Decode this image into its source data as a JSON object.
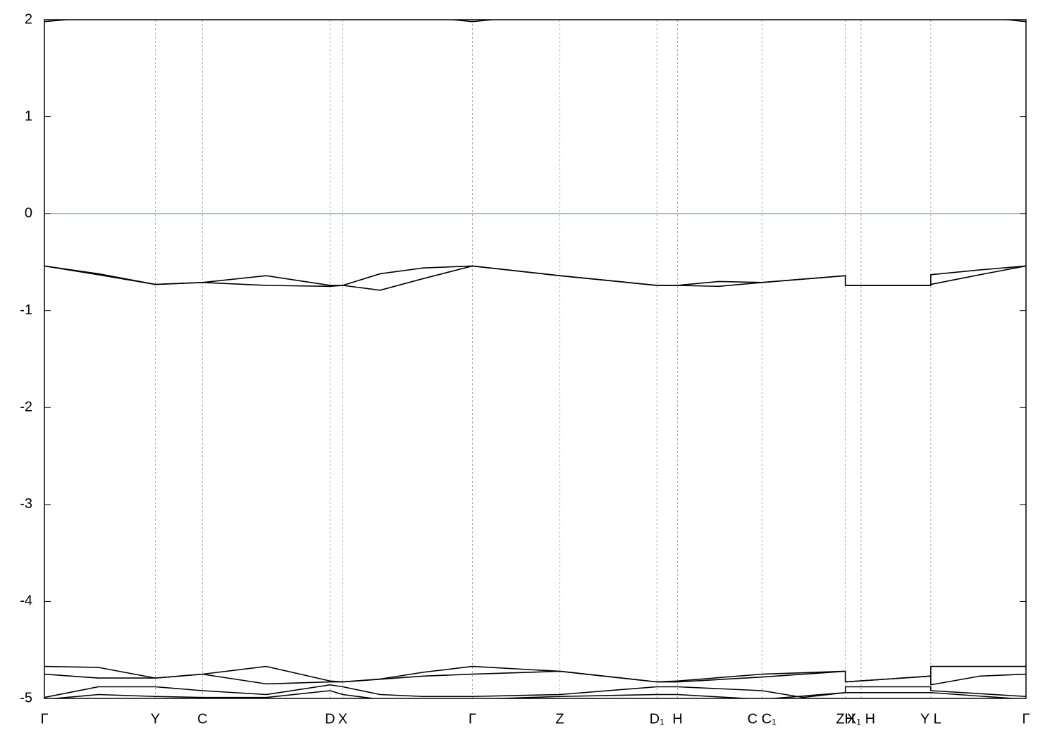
{
  "chart_data": {
    "type": "line",
    "xlim": [
      0,
      1
    ],
    "ylim": [
      -5,
      2
    ],
    "yticks": [
      2,
      1,
      0,
      -1,
      -2,
      -3,
      -4,
      -5
    ],
    "xticks": [
      {
        "value": 0,
        "label": "Γ"
      },
      {
        "value": 0.113,
        "label": "Y"
      },
      {
        "value": 0.161,
        "label": "C"
      },
      {
        "value": 0.291,
        "label": "D"
      },
      {
        "value": 0.304,
        "label": "X"
      },
      {
        "value": 0.436,
        "label": "Γ"
      },
      {
        "value": 0.525,
        "label": "Z"
      },
      {
        "value": 0.624,
        "label": "D₁"
      },
      {
        "value": 0.645,
        "label": "H"
      },
      {
        "value": 0.731,
        "label": "C C₁"
      },
      {
        "value": 0.816,
        "label": "ZH"
      },
      {
        "value": 0.832,
        "label": "X₁ H"
      },
      {
        "value": 0.903,
        "label": "Y L"
      },
      {
        "value": 1,
        "label": "Γ"
      }
    ],
    "grid": true,
    "hline": {
      "value": 0,
      "color": "#5ab4c8"
    },
    "series": [
      {
        "color": "#000000",
        "x": [
          0,
          0.055,
          0.386,
          0.436,
          0.486,
          0.953,
          1
        ],
        "values": [
          1.98,
          2.03,
          2.03,
          1.98,
          2.03,
          2.03,
          1.98
        ]
      },
      {
        "color": "#000000",
        "x": [
          0,
          0.055,
          0.113,
          0.161,
          0.226,
          0.291,
          0.304,
          0.342,
          0.386,
          0.436,
          0.525,
          0.624,
          0.645,
          0.687,
          0.731,
          0.816,
          0.816,
          0.832,
          0.903,
          0.903,
          0.953,
          1
        ],
        "values": [
          -0.54,
          -0.62,
          -0.73,
          -0.71,
          -0.64,
          -0.74,
          -0.74,
          -0.62,
          -0.56,
          -0.54,
          -0.64,
          -0.74,
          -0.74,
          -0.7,
          -0.71,
          -0.64,
          -0.74,
          -0.74,
          -0.74,
          -0.63,
          -0.58,
          -0.54
        ]
      },
      {
        "color": "#000000",
        "x": [
          0,
          0.055,
          0.113,
          0.161,
          0.226,
          0.291,
          0.304,
          0.342,
          0.386,
          0.436,
          0.525,
          0.624,
          0.645,
          0.687,
          0.731,
          0.816,
          0.816,
          0.832,
          0.903,
          0.903,
          0.953,
          1
        ],
        "values": [
          -0.54,
          -0.63,
          -0.73,
          -0.71,
          -0.74,
          -0.75,
          -0.74,
          -0.79,
          -0.67,
          -0.54,
          -0.64,
          -0.74,
          -0.74,
          -0.75,
          -0.71,
          -0.64,
          -0.74,
          -0.74,
          -0.74,
          -0.73,
          -0.63,
          -0.54
        ]
      },
      {
        "color": "#000000",
        "x": [
          0,
          0.055,
          0.113,
          0.161,
          0.226,
          0.291,
          0.304,
          0.342,
          0.386,
          0.436,
          0.525,
          0.624,
          0.645,
          0.731,
          0.816,
          0.816,
          0.903,
          0.903,
          1
        ],
        "values": [
          -4.67,
          -4.68,
          -4.79,
          -4.75,
          -4.67,
          -4.82,
          -4.83,
          -4.8,
          -4.73,
          -4.67,
          -4.72,
          -4.83,
          -4.82,
          -4.75,
          -4.72,
          -4.83,
          -4.77,
          -4.67,
          -4.67
        ]
      },
      {
        "color": "#000000",
        "x": [
          0,
          0.055,
          0.113,
          0.161,
          0.226,
          0.291,
          0.304,
          0.386,
          0.436,
          0.525,
          0.624,
          0.645,
          0.731,
          0.816,
          0.816,
          0.903,
          0.903,
          0.953,
          1
        ],
        "values": [
          -4.75,
          -4.79,
          -4.79,
          -4.75,
          -4.85,
          -4.83,
          -4.83,
          -4.77,
          -4.75,
          -4.72,
          -4.83,
          -4.83,
          -4.78,
          -4.72,
          -4.83,
          -4.77,
          -4.86,
          -4.77,
          -4.75
        ]
      },
      {
        "color": "#000000",
        "x": [
          0,
          0.055,
          0.113,
          0.161,
          0.226,
          0.291,
          0.304,
          0.342,
          0.386,
          0.436,
          0.525,
          0.624,
          0.645,
          0.731,
          0.773,
          0.816,
          0.816,
          0.903,
          0.903,
          1
        ],
        "values": [
          -4.99,
          -4.88,
          -4.88,
          -4.92,
          -4.96,
          -4.86,
          -4.88,
          -4.96,
          -4.98,
          -4.98,
          -4.96,
          -4.88,
          -4.88,
          -4.92,
          -4.99,
          -4.94,
          -4.88,
          -4.88,
          -4.92,
          -4.98
        ]
      },
      {
        "color": "#000000",
        "x": [
          0,
          0.055,
          0.113,
          0.161,
          0.226,
          0.291,
          0.304,
          0.342,
          0.436,
          0.525,
          0.624,
          0.645,
          0.731,
          0.816,
          0.903,
          1
        ],
        "values": [
          -5.01,
          -4.96,
          -4.98,
          -4.99,
          -4.99,
          -4.92,
          -4.96,
          -5.01,
          -5.01,
          -4.98,
          -4.96,
          -4.96,
          -5.01,
          -4.94,
          -4.94,
          -5.01
        ]
      }
    ]
  }
}
